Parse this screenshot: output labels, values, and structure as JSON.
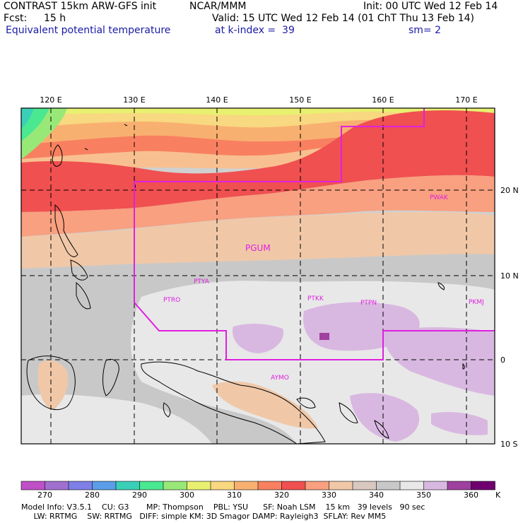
{
  "header": {
    "model_title": "CONTRAST 15km ARW-GFS init",
    "org": "NCAR/MMM",
    "init": "Init: 00 UTC Wed 12 Feb 14",
    "fcst_label": "Fcst:",
    "fcst_value": "15 h",
    "valid": "Valid: 15 UTC Wed 12 Feb 14 (01 ChT Thu 13 Feb 14)",
    "field_name": "Equivalent potential temperature",
    "level": "at k-index =  39",
    "smoothing": "sm= 2"
  },
  "map": {
    "lon_labels": [
      "120 E",
      "130 E",
      "140 E",
      "150 E",
      "160 E",
      "170 E"
    ],
    "lat_labels": [
      "20 N",
      "10 N",
      "0",
      "10 S"
    ],
    "stations": [
      {
        "id": "PWAK"
      },
      {
        "id": "PGUM"
      },
      {
        "id": "PTYA"
      },
      {
        "id": "PTRO"
      },
      {
        "id": "PTKK"
      },
      {
        "id": "PTPN"
      },
      {
        "id": "PKMJ"
      },
      {
        "id": "AYMO"
      }
    ],
    "boundary_color": "#e020e0"
  },
  "colorbar": {
    "tick_labels": [
      "270",
      "280",
      "290",
      "300",
      "310",
      "320",
      "330",
      "340",
      "350",
      "360"
    ],
    "unit": "K",
    "colors": [
      "#c050c8",
      "#a070d0",
      "#7f7fe8",
      "#5a9ee8",
      "#3ad0b8",
      "#4ae890",
      "#98e878",
      "#e8f070",
      "#f8d880",
      "#f8b070",
      "#f88060",
      "#f05050",
      "#f8a080",
      "#f0c8a8",
      "#d8c8c0",
      "#c8c8c8",
      "#e8e8e8",
      "#d8b8e0",
      "#a040a0",
      "#700070"
    ]
  },
  "footer": {
    "line1": "Model Info: V3.5.1    CU: G3       MP: Thompson    PBL: YSU      SF: Noah LSM    15 km   39 levels   90 sec",
    "line2": "     LW: RRTMG    SW: RRTMG   DIFF: simple KM: 3D Smagor DAMP: Rayleigh3  SFLAY: Rev MM5"
  }
}
